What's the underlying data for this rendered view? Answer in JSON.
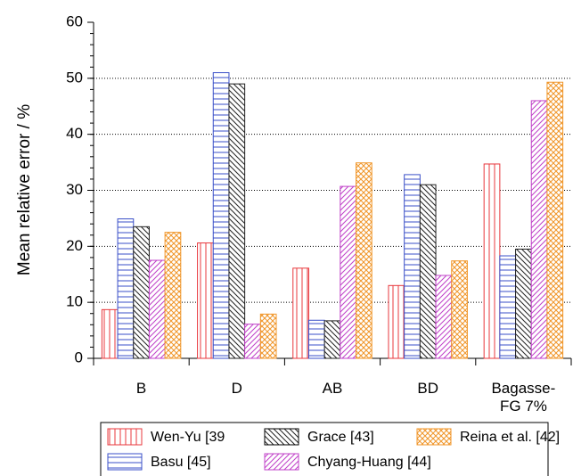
{
  "chart_data": {
    "type": "bar",
    "y_label": "Mean relative error / %",
    "categories": [
      "B",
      "D",
      "AB",
      "BD",
      "Bagasse-FG 7%"
    ],
    "series": [
      {
        "name": "Wen-Yu [39",
        "color": "#e8383d",
        "hatch": "vertical",
        "values": [
          8.7,
          20.6,
          16.1,
          13,
          34.7
        ]
      },
      {
        "name": "Basu [45]",
        "color": "#3a4fc8",
        "hatch": "horizontal",
        "values": [
          24.9,
          51,
          6.8,
          32.8,
          18.3
        ]
      },
      {
        "name": "Grace [43]",
        "color": "#222222",
        "hatch": "backslash",
        "values": [
          23.5,
          49,
          6.7,
          31,
          19.5
        ]
      },
      {
        "name": "Chyang-Huang [44]",
        "color": "#c040c8",
        "hatch": "slash",
        "values": [
          17.5,
          6.1,
          30.7,
          14.8,
          46
        ]
      },
      {
        "name": "Reina et al. [42]",
        "color": "#f0962a",
        "hatch": "cross",
        "values": [
          22.5,
          7.9,
          34.9,
          17.4,
          49.3
        ]
      }
    ],
    "ylim": [
      0,
      60
    ],
    "yticks": [
      0,
      10,
      20,
      30,
      40,
      50,
      60
    ],
    "grid": true
  }
}
